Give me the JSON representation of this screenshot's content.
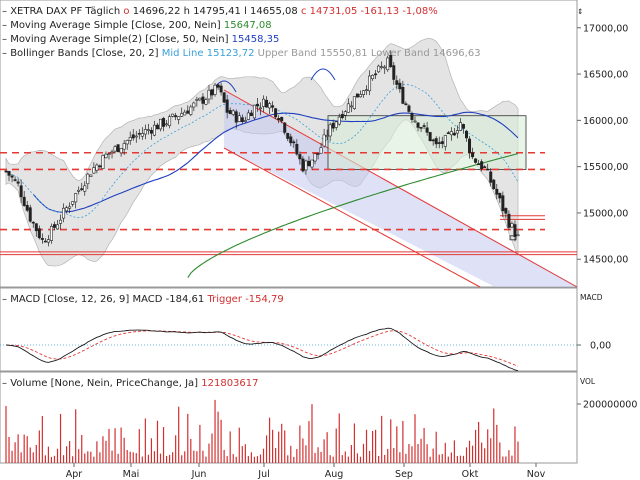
{
  "colors": {
    "up": "#2e7d32",
    "down": "#c62828",
    "sma200": "#2e8b2e",
    "sma50": "#1f3fbf",
    "bb_fill": "#e4e4e4",
    "bb_edge": "#b4b4b4",
    "price_color": "#d32f2f",
    "mid_color": "#3aa0d8",
    "gray_text": "#888888",
    "support": "#e53935",
    "channel_fill": "#c5c8f0",
    "channel_line": "#e53935",
    "box_fill": "#d8ecd8",
    "macd": "#1a1a1a",
    "trigger": "#e53935",
    "zero": "#3aa0d8",
    "volume": "#d32f2f"
  },
  "legend": {
    "main": {
      "name": "XETRA DAX PF",
      "interval": "Täglich",
      "o_label": "o",
      "o_value": "14696,22",
      "h_label": "h",
      "h_value": "14795,41",
      "l_label": "l",
      "l_value": "14655,08",
      "c_label": "c",
      "c_value": "14731,05",
      "change": "-161,13",
      "change_pct": "-1,08%",
      "corner_icon": "up-down-arrows-icon"
    },
    "sma200": {
      "label": "Moving Average Simple",
      "params": "[Close, 200, Nein]",
      "value": "15647,08"
    },
    "sma50": {
      "label": "Moving Average Simple(2)",
      "params": "[Close, 50, Nein]",
      "value": "15458,35"
    },
    "bb": {
      "label": "Bollinger Bands",
      "params": "[Close, 20, 2]",
      "mid_label": "Mid Line",
      "mid_value": "15123,72",
      "upper_label": "Upper Band",
      "upper_value": "15550,81",
      "lower_label": "Lower Band",
      "lower_value": "14696,63"
    },
    "macd": {
      "label": "MACD",
      "params": "[Close, 12, 26, 9]",
      "macd_label": "MACD",
      "macd_value": "-184,61",
      "trigger_label": "Trigger",
      "trigger_value": "-154,79",
      "axis_title": "MACD"
    },
    "volume": {
      "label": "Volume",
      "params": "[None, Nein, PriceChange, Ja]",
      "value": "121803617",
      "axis_title": "VOL"
    }
  },
  "chart_data": {
    "type": "candlestick",
    "price_ticks": [
      "17000,00",
      "16500,00",
      "16000,00",
      "15500,00",
      "15000,00",
      "14500,00"
    ],
    "price_tick_values": [
      17000,
      16500,
      16000,
      15500,
      15000,
      14500
    ],
    "ylim": [
      14200,
      17300
    ],
    "x_labels": [
      "Apr",
      "Mai",
      "Jun",
      "Jul",
      "Aug",
      "Sep",
      "Okt",
      "Nov"
    ],
    "macd_ticks": [
      "0,00"
    ],
    "volume_ticks": [
      "200000000"
    ],
    "support_lines": [
      15650,
      15470,
      14820
    ],
    "resistance_box": {
      "y_top": 16050,
      "y_bottom": 15470
    },
    "recent_levels": [
      14970,
      14930
    ],
    "bottom_levels": [
      14580,
      14550
    ],
    "last_close": 14731.05
  }
}
